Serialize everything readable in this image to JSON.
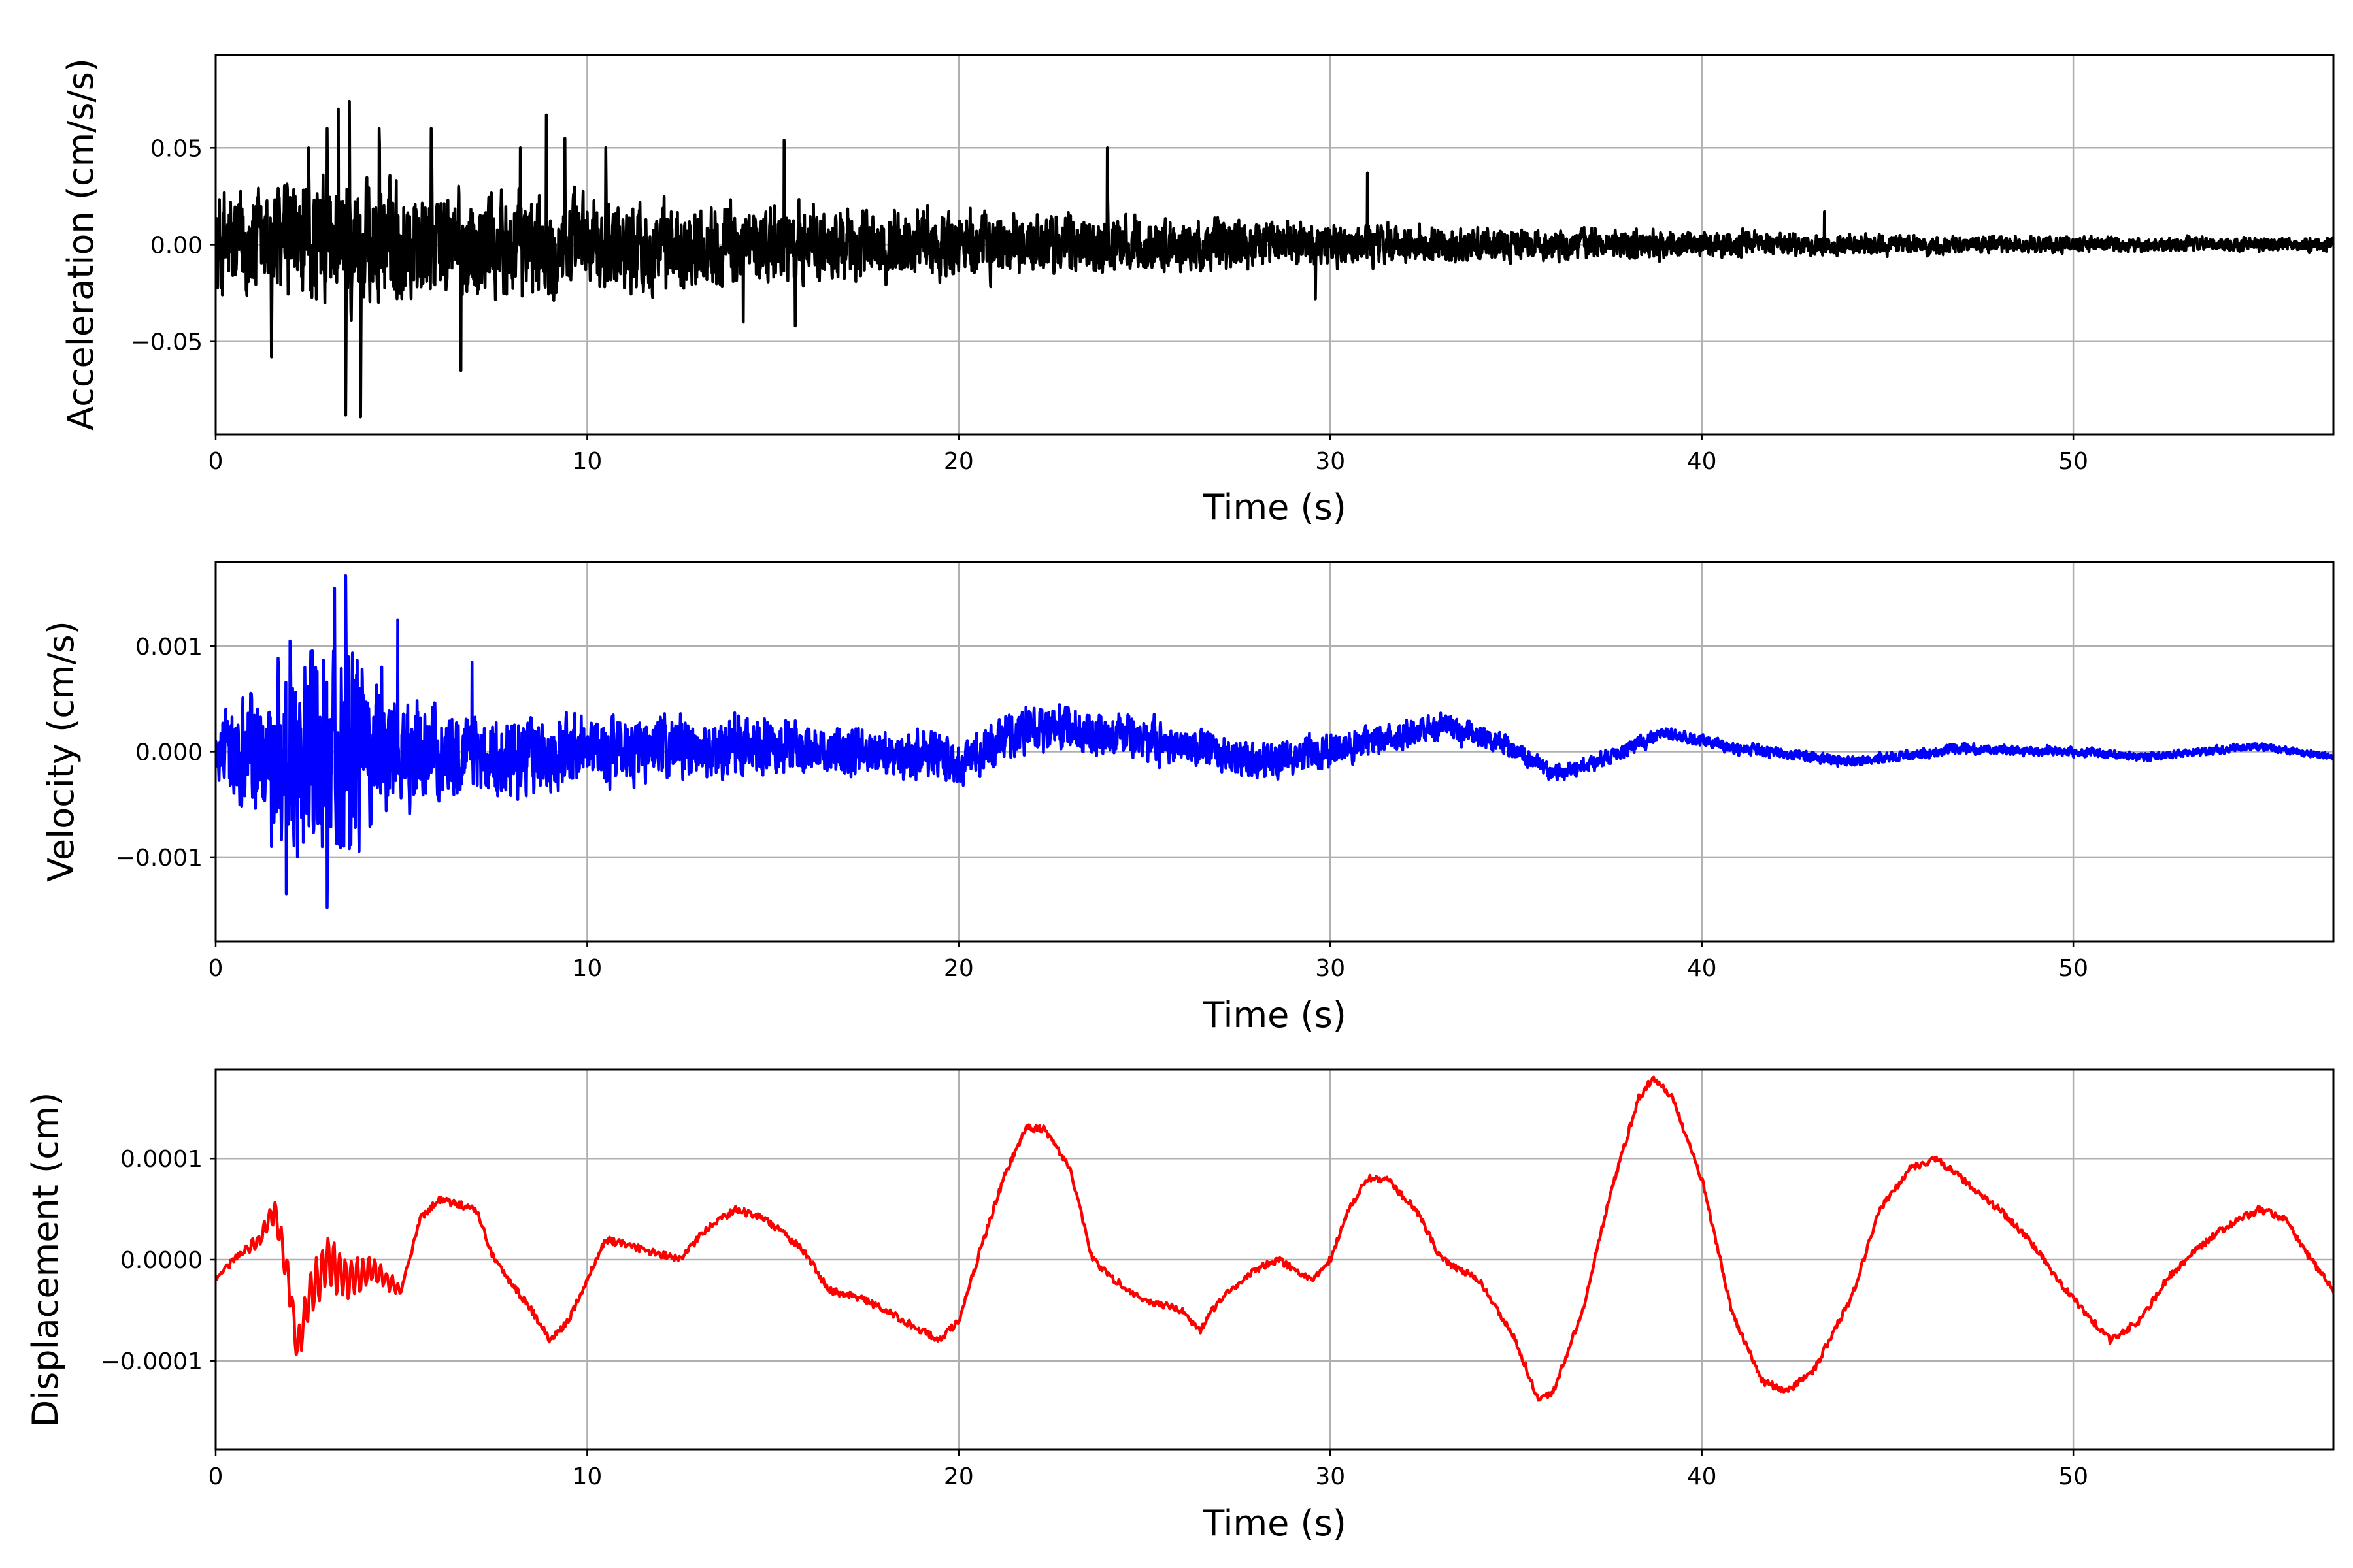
{
  "chart_data": [
    {
      "type": "line",
      "id": "acceleration",
      "xlabel": "Time (s)",
      "ylabel": "Acceleration (cm/s/s)",
      "xlim": [
        0,
        57
      ],
      "ylim": [
        -0.098,
        0.098
      ],
      "xticks": [
        0,
        10,
        20,
        30,
        40,
        50
      ],
      "xtick_labels": [
        "0",
        "10",
        "20",
        "30",
        "40",
        "50"
      ],
      "yticks": [
        -0.05,
        0.0,
        0.05
      ],
      "ytick_labels": [
        "−0.05",
        "0.00",
        "0.05"
      ],
      "grid": true,
      "color": "#000000",
      "envelope": [
        [
          0,
          0.036
        ],
        [
          4,
          0.042
        ],
        [
          9,
          0.03
        ],
        [
          15,
          0.024
        ],
        [
          20,
          0.021
        ],
        [
          25,
          0.017
        ],
        [
          30,
          0.013
        ],
        [
          35,
          0.01
        ],
        [
          40,
          0.008
        ],
        [
          45,
          0.006
        ],
        [
          50,
          0.005
        ],
        [
          57,
          0.004
        ]
      ],
      "peaks": [
        [
          1.5,
          -0.058
        ],
        [
          2.5,
          0.05
        ],
        [
          3.0,
          0.06
        ],
        [
          3.3,
          0.07
        ],
        [
          3.5,
          -0.088
        ],
        [
          3.6,
          0.074
        ],
        [
          3.9,
          -0.089
        ],
        [
          4.4,
          0.06
        ],
        [
          5.8,
          0.06
        ],
        [
          6.6,
          -0.065
        ],
        [
          8.2,
          0.05
        ],
        [
          8.9,
          0.067
        ],
        [
          9.4,
          0.055
        ],
        [
          10.5,
          0.05
        ],
        [
          14.2,
          -0.04
        ],
        [
          15.3,
          0.054
        ],
        [
          15.6,
          -0.042
        ],
        [
          24.0,
          0.05
        ],
        [
          29.6,
          -0.028
        ],
        [
          31.0,
          0.037
        ],
        [
          43.3,
          0.017
        ]
      ]
    },
    {
      "type": "line",
      "id": "velocity",
      "xlabel": "Time (s)",
      "ylabel": "Velocity (cm/s)",
      "xlim": [
        0,
        57
      ],
      "ylim": [
        -0.0018,
        0.0018
      ],
      "xticks": [
        0,
        10,
        20,
        30,
        40,
        50
      ],
      "xtick_labels": [
        "0",
        "10",
        "20",
        "30",
        "40",
        "50"
      ],
      "yticks": [
        -0.001,
        0.0,
        0.001
      ],
      "ytick_labels": [
        "−0.001",
        "0.000",
        "0.001"
      ],
      "grid": true,
      "color": "#0000ff",
      "trend": [
        [
          0,
          0.0
        ],
        [
          10,
          0.0
        ],
        [
          15,
          5e-05
        ],
        [
          18,
          0.0
        ],
        [
          20,
          -8e-05
        ],
        [
          22,
          0.00025
        ],
        [
          25,
          0.00012
        ],
        [
          28,
          -8e-05
        ],
        [
          30,
          0.0
        ],
        [
          33,
          0.00025
        ],
        [
          34.5,
          0.0001
        ],
        [
          36,
          -0.0002
        ],
        [
          37,
          -0.00012
        ],
        [
          39,
          0.00018
        ],
        [
          41,
          3e-05
        ],
        [
          44,
          -0.0001
        ],
        [
          47,
          3e-05
        ],
        [
          50,
          0.0
        ],
        [
          52,
          -5e-05
        ],
        [
          55,
          5e-05
        ],
        [
          57,
          -5e-05
        ]
      ],
      "envelope": [
        [
          0,
          0.0004
        ],
        [
          1.5,
          0.0009
        ],
        [
          2.5,
          0.0012
        ],
        [
          3.8,
          0.0011
        ],
        [
          5,
          0.0006
        ],
        [
          7,
          0.0005
        ],
        [
          10,
          0.0004
        ],
        [
          16,
          0.0003
        ],
        [
          25,
          0.00024
        ],
        [
          33,
          0.00016
        ],
        [
          36,
          0.0001
        ],
        [
          40,
          7e-05
        ],
        [
          50,
          5e-05
        ],
        [
          57,
          4e-05
        ]
      ],
      "peaks": [
        [
          1.5,
          -0.0009
        ],
        [
          1.7,
          0.00085
        ],
        [
          1.9,
          -0.00135
        ],
        [
          2.0,
          0.00105
        ],
        [
          2.2,
          -0.001
        ],
        [
          2.4,
          0.0008
        ],
        [
          3.0,
          -0.00148
        ],
        [
          3.2,
          0.00155
        ],
        [
          3.5,
          0.00167
        ],
        [
          3.6,
          -0.00092
        ],
        [
          4.9,
          0.00125
        ],
        [
          6.9,
          0.00085
        ]
      ]
    },
    {
      "type": "line",
      "id": "displacement",
      "xlabel": "Time (s)",
      "ylabel": "Displacement (cm)",
      "xlim": [
        0,
        57
      ],
      "ylim": [
        -0.000188,
        0.000188
      ],
      "xticks": [
        0,
        10,
        20,
        30,
        40,
        50
      ],
      "xtick_labels": [
        "0",
        "10",
        "20",
        "30",
        "40",
        "50"
      ],
      "yticks": [
        -0.0001,
        0.0,
        0.0001
      ],
      "ytick_labels": [
        "−0.0001",
        "0.0000",
        "0.0001"
      ],
      "grid": true,
      "color": "#ff0000",
      "points": [
        [
          0,
          -2e-05
        ],
        [
          0.6,
          5e-06
        ],
        [
          1.2,
          2e-05
        ],
        [
          1.6,
          5e-05
        ],
        [
          2.0,
          -3e-05
        ],
        [
          2.2,
          -9e-05
        ],
        [
          2.5,
          -4e-05
        ],
        [
          3.0,
          0.0
        ],
        [
          3.5,
          -2e-05
        ],
        [
          4.2,
          -1e-05
        ],
        [
          5.0,
          -3e-05
        ],
        [
          5.5,
          4e-05
        ],
        [
          6.0,
          6e-05
        ],
        [
          7.0,
          5e-05
        ],
        [
          7.5,
          0.0
        ],
        [
          8.5,
          -5e-05
        ],
        [
          9.0,
          -8e-05
        ],
        [
          9.5,
          -6e-05
        ],
        [
          10.0,
          -2e-05
        ],
        [
          10.5,
          2e-05
        ],
        [
          11.5,
          1e-05
        ],
        [
          12.5,
          0.0
        ],
        [
          13.2,
          3e-05
        ],
        [
          14.0,
          5e-05
        ],
        [
          14.8,
          4e-05
        ],
        [
          15.8,
          1e-05
        ],
        [
          16.5,
          -3e-05
        ],
        [
          17.5,
          -4e-05
        ],
        [
          18.5,
          -6e-05
        ],
        [
          19.5,
          -8e-05
        ],
        [
          20.0,
          -6e-05
        ],
        [
          20.5,
          0.0
        ],
        [
          21.2,
          8e-05
        ],
        [
          21.8,
          0.00013
        ],
        [
          22.3,
          0.00013
        ],
        [
          23.0,
          9e-05
        ],
        [
          23.6,
          0.0
        ],
        [
          24.2,
          -2e-05
        ],
        [
          25.0,
          -4e-05
        ],
        [
          26.0,
          -5e-05
        ],
        [
          26.5,
          -7e-05
        ],
        [
          27.0,
          -4e-05
        ],
        [
          28.0,
          -1e-05
        ],
        [
          28.6,
          0.0
        ],
        [
          29.5,
          -2e-05
        ],
        [
          30.0,
          0.0
        ],
        [
          30.5,
          5e-05
        ],
        [
          31.0,
          8e-05
        ],
        [
          31.5,
          8e-05
        ],
        [
          32.3,
          5e-05
        ],
        [
          33.0,
          0.0
        ],
        [
          34.0,
          -2e-05
        ],
        [
          35.0,
          -8e-05
        ],
        [
          35.6,
          -0.00014
        ],
        [
          36.0,
          -0.00013
        ],
        [
          36.8,
          -5e-05
        ],
        [
          37.5,
          6e-05
        ],
        [
          38.3,
          0.00016
        ],
        [
          38.7,
          0.00018
        ],
        [
          39.2,
          0.00016
        ],
        [
          40.0,
          8e-05
        ],
        [
          40.8,
          -5e-05
        ],
        [
          41.6,
          -0.00012
        ],
        [
          42.3,
          -0.00013
        ],
        [
          43.0,
          -0.00011
        ],
        [
          44.0,
          -4e-05
        ],
        [
          44.8,
          5e-05
        ],
        [
          45.6,
          9e-05
        ],
        [
          46.3,
          0.0001
        ],
        [
          47.0,
          8e-05
        ],
        [
          48.0,
          5e-05
        ],
        [
          48.8,
          2e-05
        ],
        [
          49.8,
          -3e-05
        ],
        [
          50.5,
          -6e-05
        ],
        [
          51.0,
          -8e-05
        ],
        [
          51.8,
          -6e-05
        ],
        [
          52.5,
          -2e-05
        ],
        [
          53.3,
          1e-05
        ],
        [
          54.0,
          3e-05
        ],
        [
          55.0,
          5e-05
        ],
        [
          55.7,
          4e-05
        ],
        [
          56.4,
          0.0
        ],
        [
          57.0,
          -3e-05
        ]
      ],
      "jitter": 3.5e-06
    }
  ]
}
